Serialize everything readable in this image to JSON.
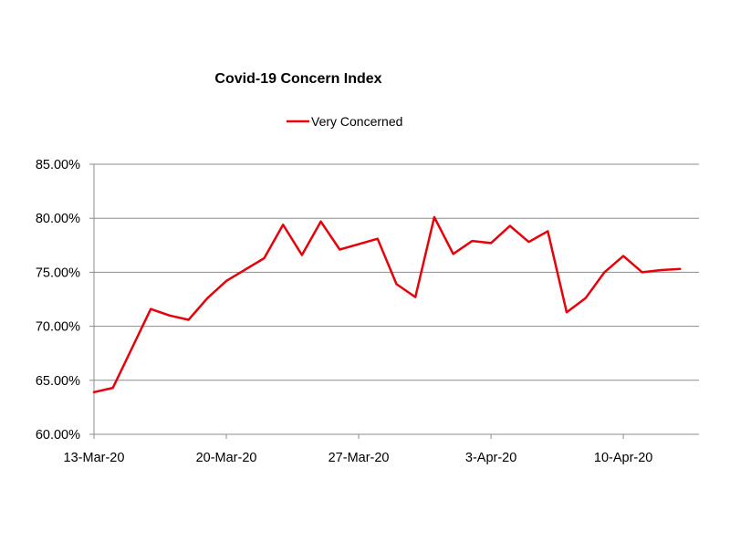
{
  "chart_data": {
    "type": "line",
    "title": "Covid-19 Concern Index",
    "xlabel": "",
    "ylabel": "",
    "x_tick_labels": [
      "13-Mar-20",
      "20-Mar-20",
      "27-Mar-20",
      "3-Apr-20",
      "10-Apr-20"
    ],
    "x_tick_dates": [
      "2020-03-13",
      "2020-03-20",
      "2020-03-27",
      "2020-04-03",
      "2020-04-10"
    ],
    "x_range": [
      "2020-03-13",
      "2020-04-14"
    ],
    "y_tick_labels": [
      "60.00%",
      "65.00%",
      "70.00%",
      "75.00%",
      "80.00%",
      "85.00%"
    ],
    "y_ticks": [
      60,
      65,
      70,
      75,
      80,
      85
    ],
    "ylim": [
      60,
      85
    ],
    "y_unit": "%",
    "grid": {
      "horizontal": true,
      "vertical": false
    },
    "legend_position": "top-center",
    "series": [
      {
        "name": "Very Concerned",
        "color": "#e8000b",
        "points": [
          {
            "x": "2020-03-13",
            "y": 63.9
          },
          {
            "x": "2020-03-14",
            "y": 64.3
          },
          {
            "x": "2020-03-16",
            "y": 71.6
          },
          {
            "x": "2020-03-17",
            "y": 71.0
          },
          {
            "x": "2020-03-18",
            "y": 70.6
          },
          {
            "x": "2020-03-19",
            "y": 72.6
          },
          {
            "x": "2020-03-20",
            "y": 74.2
          },
          {
            "x": "2020-03-22",
            "y": 76.3
          },
          {
            "x": "2020-03-23",
            "y": 79.4
          },
          {
            "x": "2020-03-24",
            "y": 76.6
          },
          {
            "x": "2020-03-25",
            "y": 79.7
          },
          {
            "x": "2020-03-26",
            "y": 77.1
          },
          {
            "x": "2020-03-28",
            "y": 78.1
          },
          {
            "x": "2020-03-29",
            "y": 73.9
          },
          {
            "x": "2020-03-30",
            "y": 72.7
          },
          {
            "x": "2020-03-31",
            "y": 80.1
          },
          {
            "x": "2020-04-01",
            "y": 76.7
          },
          {
            "x": "2020-04-02",
            "y": 77.9
          },
          {
            "x": "2020-04-03",
            "y": 77.7
          },
          {
            "x": "2020-04-04",
            "y": 79.3
          },
          {
            "x": "2020-04-05",
            "y": 77.8
          },
          {
            "x": "2020-04-06",
            "y": 78.8
          },
          {
            "x": "2020-04-07",
            "y": 71.3
          },
          {
            "x": "2020-04-08",
            "y": 72.6
          },
          {
            "x": "2020-04-09",
            "y": 75.0
          },
          {
            "x": "2020-04-10",
            "y": 76.5
          },
          {
            "x": "2020-04-11",
            "y": 75.0
          },
          {
            "x": "2020-04-12",
            "y": 75.2
          },
          {
            "x": "2020-04-13",
            "y": 75.3
          }
        ]
      }
    ]
  }
}
